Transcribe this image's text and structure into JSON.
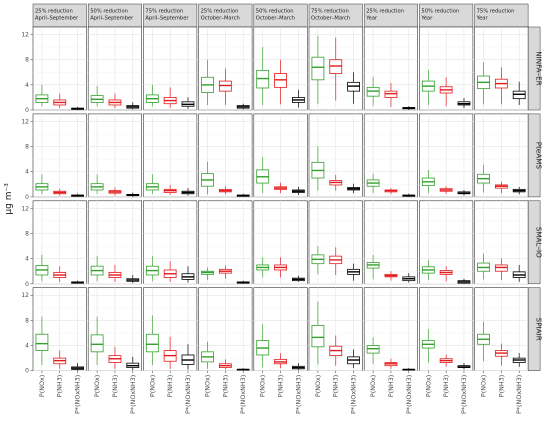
{
  "chart_data": {
    "type": "boxplot",
    "ylabel": "μg m⁻³",
    "ylim": [
      0,
      13.2
    ],
    "yticks": [
      0,
      4,
      8,
      12
    ],
    "grid": true,
    "columns": [
      {
        "line1": "25% reduction",
        "line2": "April–September"
      },
      {
        "line1": "50% reduction",
        "line2": "April–September"
      },
      {
        "line1": "75% reduction",
        "line2": "April–September"
      },
      {
        "line1": "25% reduction",
        "line2": "October–March"
      },
      {
        "line1": "50% reduction",
        "line2": "October–March"
      },
      {
        "line1": "75% reduction",
        "line2": "October–March"
      },
      {
        "line1": "25% reduction",
        "line2": "Year"
      },
      {
        "line1": "50% reduction",
        "line2": "Year"
      },
      {
        "line1": "75% reduction",
        "line2": "Year"
      }
    ],
    "rows": [
      "NINFA–ER",
      "PteAMS",
      "SMAL–IO",
      "SPIAIR"
    ],
    "x_categories": [
      "P(NOx)",
      "P(NH3)",
      "P*(NOxNH3)"
    ],
    "series_colors": [
      "#33a02c",
      "#e31a1c",
      "#000000"
    ],
    "panels": [
      [
        [
          [
            0.6,
            1.2,
            1.8,
            2.4,
            4.0
          ],
          [
            0.3,
            0.8,
            1.2,
            1.6,
            2.6
          ],
          [
            0.0,
            0.1,
            0.2,
            0.3,
            0.5
          ]
        ],
        [
          [
            0.6,
            1.2,
            1.7,
            2.3,
            3.8
          ],
          [
            0.3,
            0.8,
            1.2,
            1.6,
            2.6
          ],
          [
            0.1,
            0.3,
            0.5,
            0.7,
            1.2
          ]
        ],
        [
          [
            0.6,
            1.2,
            1.8,
            2.4,
            4.0
          ],
          [
            0.3,
            1.0,
            1.5,
            2.0,
            3.6
          ],
          [
            0.2,
            0.6,
            0.9,
            1.3,
            2.0
          ]
        ],
        [
          [
            0.8,
            2.8,
            4.0,
            5.2,
            8.0
          ],
          [
            0.8,
            3.0,
            3.9,
            4.6,
            6.6
          ],
          [
            0.1,
            0.3,
            0.5,
            0.7,
            1.0
          ]
        ],
        [
          [
            0.8,
            3.5,
            5.0,
            6.3,
            10.0
          ],
          [
            0.9,
            3.6,
            4.8,
            5.8,
            8.0
          ],
          [
            0.4,
            1.2,
            1.6,
            2.0,
            3.2
          ]
        ],
        [
          [
            1.0,
            4.8,
            6.8,
            8.4,
            11.8
          ],
          [
            1.5,
            5.8,
            7.0,
            8.0,
            11.5
          ],
          [
            1.0,
            3.0,
            3.8,
            4.4,
            6.0
          ]
        ],
        [
          [
            0.7,
            2.2,
            3.0,
            3.6,
            5.3
          ],
          [
            0.5,
            2.0,
            2.6,
            3.0,
            4.3
          ],
          [
            0.0,
            0.2,
            0.3,
            0.4,
            0.6
          ]
        ],
        [
          [
            0.8,
            3.0,
            3.8,
            4.6,
            6.4
          ],
          [
            0.6,
            2.7,
            3.2,
            3.7,
            5.2
          ],
          [
            0.3,
            0.8,
            1.0,
            1.3,
            1.9
          ]
        ],
        [
          [
            0.9,
            3.4,
            4.4,
            5.4,
            7.6
          ],
          [
            0.9,
            3.5,
            4.2,
            4.9,
            6.8
          ],
          [
            0.8,
            1.8,
            2.5,
            3.0,
            4.5
          ]
        ]
      ],
      [
        [
          [
            0.5,
            1.1,
            1.6,
            2.1,
            3.6
          ],
          [
            0.2,
            0.5,
            0.7,
            0.9,
            1.3
          ],
          [
            0.0,
            0.1,
            0.2,
            0.3,
            0.5
          ]
        ],
        [
          [
            0.5,
            1.1,
            1.6,
            2.1,
            3.6
          ],
          [
            0.2,
            0.6,
            0.8,
            1.0,
            1.5
          ],
          [
            0.0,
            0.2,
            0.3,
            0.4,
            0.7
          ]
        ],
        [
          [
            0.5,
            1.1,
            1.6,
            2.1,
            3.6
          ],
          [
            0.3,
            0.7,
            1.0,
            1.2,
            1.9
          ],
          [
            0.2,
            0.5,
            0.7,
            0.9,
            1.4
          ]
        ],
        [
          [
            0.4,
            1.7,
            2.7,
            3.7,
            5.6
          ],
          [
            0.4,
            0.8,
            1.0,
            1.2,
            1.7
          ],
          [
            0.0,
            0.1,
            0.2,
            0.3,
            0.5
          ]
        ],
        [
          [
            0.6,
            2.2,
            3.2,
            4.3,
            6.3
          ],
          [
            0.6,
            1.2,
            1.4,
            1.6,
            2.3
          ],
          [
            0.3,
            0.7,
            0.9,
            1.1,
            1.6
          ]
        ],
        [
          [
            1.0,
            3.0,
            4.2,
            5.5,
            8.0
          ],
          [
            1.0,
            1.9,
            2.3,
            2.6,
            3.5
          ],
          [
            0.6,
            1.1,
            1.3,
            1.5,
            2.1
          ]
        ],
        [
          [
            0.6,
            1.7,
            2.2,
            2.7,
            3.7
          ],
          [
            0.4,
            0.8,
            1.0,
            1.1,
            1.4
          ],
          [
            0.0,
            0.1,
            0.2,
            0.3,
            0.5
          ]
        ],
        [
          [
            0.6,
            1.8,
            2.4,
            3.0,
            4.3
          ],
          [
            0.5,
            0.9,
            1.1,
            1.3,
            1.7
          ],
          [
            0.2,
            0.5,
            0.6,
            0.8,
            1.1
          ]
        ],
        [
          [
            0.7,
            2.2,
            2.9,
            3.6,
            5.1
          ],
          [
            0.6,
            1.4,
            1.7,
            1.9,
            2.4
          ],
          [
            0.4,
            0.8,
            1.0,
            1.2,
            1.6
          ]
        ]
      ],
      [
        [
          [
            0.4,
            1.4,
            2.2,
            2.9,
            4.6
          ],
          [
            0.3,
            1.0,
            1.4,
            1.8,
            2.8
          ],
          [
            0.0,
            0.1,
            0.2,
            0.3,
            0.5
          ]
        ],
        [
          [
            0.4,
            1.4,
            2.1,
            2.8,
            4.4
          ],
          [
            0.3,
            1.0,
            1.4,
            1.8,
            3.0
          ],
          [
            0.1,
            0.4,
            0.6,
            0.8,
            1.4
          ]
        ],
        [
          [
            0.4,
            1.4,
            2.1,
            2.8,
            4.4
          ],
          [
            0.3,
            1.0,
            1.6,
            2.2,
            3.6
          ],
          [
            0.2,
            0.7,
            1.1,
            1.6,
            2.8
          ]
        ],
        [
          [
            0.6,
            1.5,
            1.8,
            2.0,
            2.6
          ],
          [
            0.8,
            1.7,
            2.0,
            2.3,
            2.9
          ],
          [
            0.0,
            0.1,
            0.2,
            0.3,
            0.5
          ]
        ],
        [
          [
            1.0,
            2.2,
            2.6,
            3.0,
            4.2
          ],
          [
            1.0,
            2.2,
            2.6,
            3.0,
            4.2
          ],
          [
            0.3,
            0.5,
            0.7,
            0.9,
            1.3
          ]
        ],
        [
          [
            1.5,
            3.2,
            3.9,
            4.6,
            6.0
          ],
          [
            1.4,
            3.2,
            3.8,
            4.4,
            5.8
          ],
          [
            0.5,
            1.5,
            1.9,
            2.3,
            3.2
          ]
        ],
        [
          [
            0.7,
            2.5,
            3.0,
            3.4,
            4.6
          ],
          [
            0.5,
            1.1,
            1.3,
            1.5,
            2.0
          ],
          [
            0.2,
            0.5,
            0.8,
            1.1,
            1.7
          ]
        ],
        [
          [
            0.6,
            1.7,
            2.2,
            2.7,
            3.8
          ],
          [
            0.4,
            1.5,
            1.8,
            2.1,
            2.8
          ],
          [
            0.0,
            0.1,
            0.3,
            0.5,
            0.8
          ]
        ],
        [
          [
            0.7,
            2.0,
            2.6,
            3.3,
            4.8
          ],
          [
            0.6,
            2.0,
            2.6,
            3.0,
            4.0
          ],
          [
            0.3,
            1.0,
            1.4,
            1.9,
            3.0
          ]
        ]
      ],
      [
        [
          [
            0.9,
            3.2,
            4.3,
            5.8,
            8.6
          ],
          [
            0.3,
            1.1,
            1.6,
            2.0,
            3.2
          ],
          [
            0.0,
            0.2,
            0.4,
            0.6,
            1.2
          ]
        ],
        [
          [
            0.9,
            3.0,
            4.2,
            5.7,
            8.6
          ],
          [
            0.3,
            1.3,
            1.9,
            2.4,
            3.8
          ],
          [
            0.1,
            0.5,
            0.8,
            1.2,
            2.2
          ]
        ],
        [
          [
            0.9,
            3.0,
            4.2,
            5.8,
            8.8
          ],
          [
            0.3,
            1.5,
            2.4,
            3.2,
            5.4
          ],
          [
            0.2,
            1.0,
            1.7,
            2.5,
            4.2
          ]
        ],
        [
          [
            0.3,
            1.4,
            2.2,
            3.0,
            4.6
          ],
          [
            0.2,
            0.5,
            0.8,
            1.1,
            1.8
          ],
          [
            0.0,
            0.1,
            0.2,
            0.2,
            0.4
          ]
        ],
        [
          [
            0.5,
            2.5,
            3.6,
            4.8,
            7.4
          ],
          [
            0.4,
            1.1,
            1.4,
            1.8,
            2.8
          ],
          [
            0.1,
            0.3,
            0.5,
            0.7,
            1.2
          ]
        ],
        [
          [
            1.0,
            3.8,
            5.3,
            7.2,
            11.0
          ],
          [
            0.8,
            2.4,
            3.2,
            3.9,
            5.6
          ],
          [
            0.4,
            1.1,
            1.7,
            2.2,
            3.4
          ]
        ],
        [
          [
            1.0,
            2.8,
            3.5,
            4.0,
            5.3
          ],
          [
            0.3,
            0.8,
            1.1,
            1.3,
            1.9
          ],
          [
            0.0,
            0.1,
            0.2,
            0.2,
            0.4
          ]
        ],
        [
          [
            1.3,
            3.6,
            4.2,
            4.8,
            6.6
          ],
          [
            0.6,
            1.3,
            1.6,
            1.9,
            2.6
          ],
          [
            0.2,
            0.5,
            0.6,
            0.8,
            1.2
          ]
        ],
        [
          [
            1.5,
            4.2,
            5.0,
            5.8,
            7.8
          ],
          [
            0.8,
            2.3,
            2.8,
            3.2,
            4.3
          ],
          [
            0.6,
            1.3,
            1.7,
            2.0,
            2.8
          ]
        ]
      ]
    ]
  }
}
